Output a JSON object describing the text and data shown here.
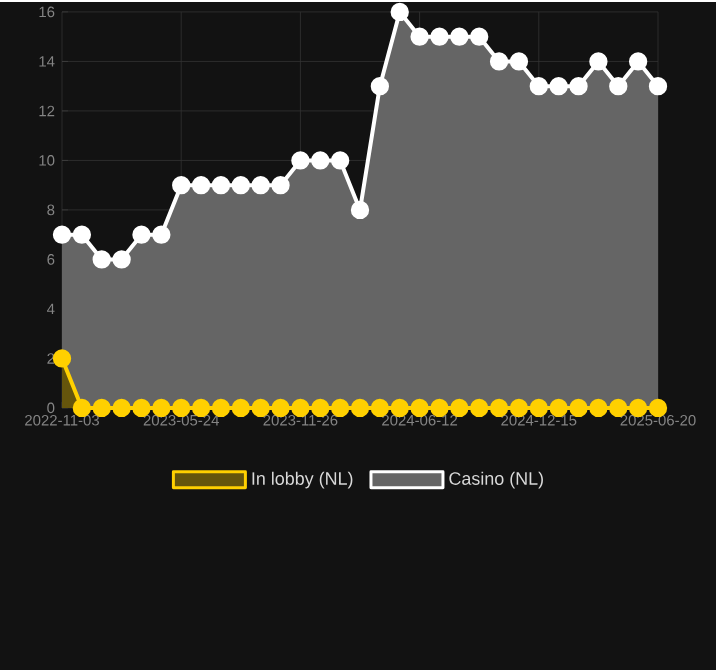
{
  "chart_data": {
    "type": "area",
    "categories": [
      "2022-11-03",
      null,
      null,
      null,
      null,
      null,
      "2023-05-24",
      null,
      null,
      null,
      null,
      null,
      "2023-11-26",
      null,
      null,
      null,
      null,
      null,
      "2024-06-12",
      null,
      null,
      null,
      null,
      null,
      "2024-12-15",
      null,
      null,
      null,
      null,
      null,
      "2025-06-20"
    ],
    "series": [
      {
        "name": "In lobby (NL)",
        "color": "#ffd000",
        "values": [
          2,
          0,
          0,
          0,
          0,
          0,
          0,
          0,
          0,
          0,
          0,
          0,
          0,
          0,
          0,
          0,
          0,
          0,
          0,
          0,
          0,
          0,
          0,
          0,
          0,
          0,
          0,
          0,
          0,
          0,
          0
        ]
      },
      {
        "name": "Casino (NL)",
        "color": "#ffffff",
        "values": [
          7,
          7,
          6,
          6,
          7,
          7,
          9,
          9,
          9,
          9,
          9,
          9,
          10,
          10,
          10,
          8,
          13,
          16,
          15,
          15,
          15,
          15,
          14,
          14,
          13,
          13,
          13,
          14,
          13,
          14,
          13
        ]
      }
    ],
    "ylim": [
      0,
      16
    ],
    "yticks": [
      0,
      2,
      4,
      6,
      8,
      10,
      12,
      14,
      16
    ],
    "grid": true,
    "legend": "bottom",
    "marker": "circle"
  }
}
